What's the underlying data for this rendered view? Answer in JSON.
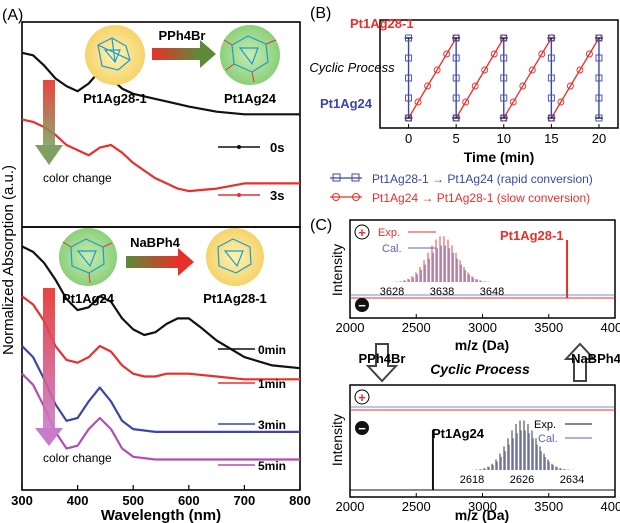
{
  "panels": {
    "A": {
      "label": "(A)",
      "ylabel": "Normalized Absorption (a.u.)",
      "xlabel": "Wavelength (nm)",
      "top": {
        "from_label": "Pt1Ag28-1",
        "to_label": "Pt1Ag24",
        "reagent": "PPh4Br",
        "arrow_note": "color change",
        "traces": [
          {
            "name": "0s"
          },
          {
            "name": "3s"
          }
        ]
      },
      "bottom": {
        "from_label": "Pt1Ag24",
        "to_label": "Pt1Ag28-1",
        "reagent": "NaBPh4",
        "arrow_note": "color change",
        "traces": [
          {
            "name": "0min"
          },
          {
            "name": "1min"
          },
          {
            "name": "3min"
          },
          {
            "name": "5min"
          }
        ]
      }
    },
    "B": {
      "label": "(B)",
      "text_top": "Pt1Ag28-1",
      "text_mid": "Cyclic Process",
      "text_bottom": "Pt1Ag24",
      "legend": [
        "Pt1Ag28-1 → Pt1Ag24 (rapid conversion)",
        "Pt1Ag24 → Pt1Ag28-1 (slow conversion)"
      ]
    },
    "C": {
      "label": "(C)",
      "ylabel": "Intensity",
      "xlabel": "m/z (Da)",
      "top_peak_label": "Pt1Ag28-1",
      "bottom_peak_label": "Pt1Ag24",
      "left_reagent": "PPh4Br",
      "right_reagent": "NaBPh4",
      "middle_text": "Cyclic Process",
      "legend": {
        "exp": "Exp.",
        "cal": "Cal."
      },
      "plus_sign": "+",
      "minus_sign": "−"
    }
  },
  "colors": {
    "black": "#111111",
    "red": "#e8302a",
    "blue": "#3b47a8",
    "magenta": "#b04fb0",
    "cal_blue": "#5b63b8",
    "arrow_green": "#5d8a3a"
  },
  "chart_data": [
    {
      "type": "line",
      "title": "",
      "xlabel": "Wavelength (nm)",
      "ylabel": "Normalized Absorption (a.u.)",
      "xlim": [
        300,
        800
      ],
      "x_ticks": [
        300,
        400,
        500,
        600,
        700,
        800
      ],
      "series": [
        {
          "name": "0s",
          "color": "#111111",
          "x": [
            300,
            320,
            340,
            360,
            380,
            400,
            420,
            440,
            460,
            480,
            500,
            540,
            560,
            600,
            650,
            700,
            750,
            800
          ],
          "y": [
            0.98,
            0.97,
            0.93,
            0.88,
            0.85,
            0.83,
            0.86,
            0.91,
            0.88,
            0.84,
            0.82,
            0.8,
            0.79,
            0.77,
            0.75,
            0.74,
            0.74,
            0.74
          ]
        },
        {
          "name": "3s",
          "color": "#e8302a",
          "x": [
            300,
            320,
            340,
            360,
            380,
            400,
            420,
            440,
            460,
            480,
            500,
            520,
            540,
            560,
            580,
            600,
            650,
            700,
            750,
            800
          ],
          "y": [
            0.72,
            0.71,
            0.69,
            0.66,
            0.62,
            0.6,
            0.58,
            0.61,
            0.62,
            0.59,
            0.55,
            0.52,
            0.49,
            0.47,
            0.45,
            0.44,
            0.45,
            0.47,
            0.47,
            0.47
          ]
        }
      ]
    },
    {
      "type": "line",
      "title": "",
      "xlabel": "Wavelength (nm)",
      "ylabel": "Normalized Absorption (a.u.)",
      "xlim": [
        300,
        800
      ],
      "x_ticks": [
        300,
        400,
        500,
        600,
        700,
        800
      ],
      "series": [
        {
          "name": "0min",
          "color": "#111111",
          "x": [
            300,
            320,
            340,
            360,
            380,
            400,
            420,
            440,
            460,
            480,
            500,
            520,
            540,
            560,
            580,
            600,
            620,
            650,
            700,
            750,
            800
          ],
          "y": [
            0.98,
            0.96,
            0.92,
            0.86,
            0.79,
            0.75,
            0.76,
            0.8,
            0.78,
            0.72,
            0.68,
            0.66,
            0.67,
            0.7,
            0.72,
            0.72,
            0.69,
            0.64,
            0.58,
            0.55,
            0.54
          ]
        },
        {
          "name": "1min",
          "color": "#e8302a",
          "x": [
            300,
            320,
            340,
            360,
            380,
            400,
            420,
            440,
            460,
            480,
            500,
            520,
            540,
            560,
            580,
            600,
            650,
            700,
            750,
            800
          ],
          "y": [
            0.8,
            0.77,
            0.71,
            0.62,
            0.57,
            0.56,
            0.58,
            0.62,
            0.6,
            0.55,
            0.52,
            0.51,
            0.51,
            0.52,
            0.52,
            0.52,
            0.51,
            0.5,
            0.5,
            0.5
          ]
        },
        {
          "name": "3min",
          "color": "#3b47a8",
          "x": [
            300,
            320,
            340,
            360,
            380,
            400,
            420,
            440,
            460,
            480,
            500,
            540,
            580,
            620,
            650,
            700,
            750,
            800
          ],
          "y": [
            0.62,
            0.58,
            0.5,
            0.41,
            0.35,
            0.36,
            0.42,
            0.47,
            0.42,
            0.35,
            0.32,
            0.31,
            0.31,
            0.31,
            0.31,
            0.31,
            0.31,
            0.31
          ]
        },
        {
          "name": "5min",
          "color": "#b04fb0",
          "x": [
            300,
            320,
            340,
            360,
            380,
            400,
            420,
            440,
            460,
            480,
            500,
            540,
            580,
            620,
            650,
            700,
            750,
            800
          ],
          "y": [
            0.52,
            0.48,
            0.4,
            0.31,
            0.25,
            0.26,
            0.32,
            0.36,
            0.32,
            0.25,
            0.22,
            0.21,
            0.21,
            0.21,
            0.21,
            0.21,
            0.21,
            0.21
          ]
        }
      ]
    },
    {
      "type": "line",
      "title": "",
      "xlabel": "Time (min)",
      "ylabel": "",
      "xlim": [
        -3,
        22
      ],
      "x_ticks": [
        0,
        5,
        10,
        15,
        20
      ],
      "series": [
        {
          "name": "Pt1Ag28-1 → Pt1Ag24 (rapid conversion)",
          "color": "#3b47a8",
          "x": [
            0,
            0,
            5,
            5,
            10,
            10,
            15,
            15,
            20,
            20
          ],
          "y": [
            1,
            0,
            1,
            0,
            1,
            0,
            1,
            0,
            1,
            0
          ]
        },
        {
          "name": "Pt1Ag24 → Pt1Ag28-1 (slow conversion)",
          "color": "#e8302a",
          "x": [
            0,
            5,
            5,
            10,
            10,
            15,
            15,
            20
          ],
          "y": [
            0,
            1,
            0,
            1,
            0,
            1,
            0,
            1
          ]
        }
      ]
    },
    {
      "type": "line",
      "title": "",
      "xlabel": "m/z (Da)",
      "ylabel": "Intensity",
      "xlim": [
        2000,
        4000
      ],
      "x_ticks": [
        2000,
        2500,
        3000,
        3500,
        4000
      ],
      "series": [
        {
          "name": "Pt1Ag28-1 peak",
          "color": "#e8302a",
          "x": [
            3630,
            3638,
            3646
          ],
          "y": [
            0,
            1,
            0
          ]
        }
      ],
      "inset": {
        "x_ticks": [
          3628,
          3638,
          3648
        ],
        "legend": [
          "Exp.",
          "Cal."
        ]
      }
    },
    {
      "type": "line",
      "title": "",
      "xlabel": "m/z (Da)",
      "ylabel": "Intensity",
      "xlim": [
        2000,
        4000
      ],
      "x_ticks": [
        2000,
        2500,
        3000,
        3500,
        4000
      ],
      "series": [
        {
          "name": "Pt1Ag24 peak",
          "color": "#111111",
          "x": [
            2618,
            2626,
            2634
          ],
          "y": [
            0,
            1,
            0
          ]
        }
      ],
      "inset": {
        "x_ticks": [
          2618,
          2626,
          2634
        ],
        "legend": [
          "Exp.",
          "Cal."
        ]
      }
    }
  ]
}
